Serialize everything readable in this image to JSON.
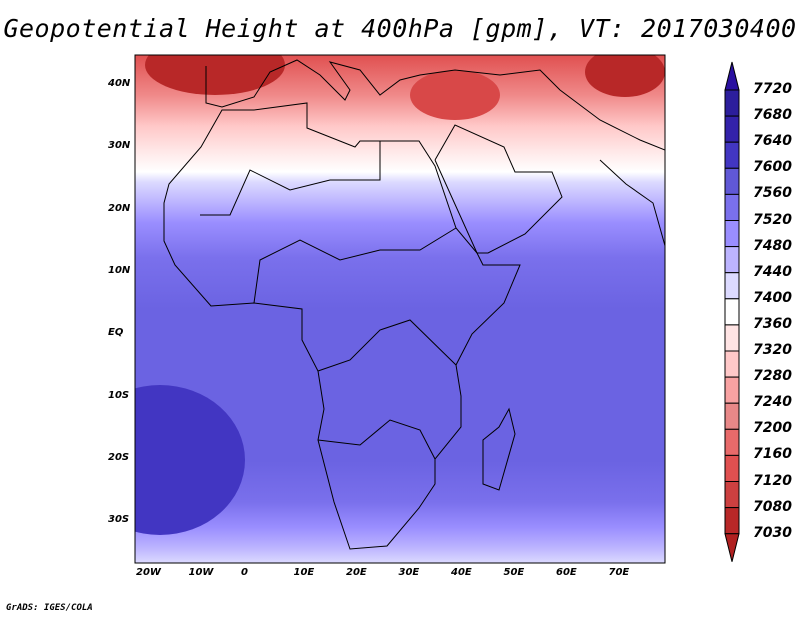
{
  "title": "Geopotential Height at 400hPa [gpm], VT: 2017030400",
  "x_ticks": [
    "20W",
    "10W",
    "0",
    "10E",
    "20E",
    "30E",
    "40E",
    "50E",
    "60E",
    "70E"
  ],
  "y_ticks": [
    "40N",
    "30N",
    "20N",
    "10N",
    "EQ",
    "10S",
    "20S",
    "30S"
  ],
  "colorbar": {
    "labels": [
      "7720",
      "7680",
      "7640",
      "7600",
      "7560",
      "7520",
      "7480",
      "7440",
      "7400",
      "7360",
      "7320",
      "7280",
      "7240",
      "7200",
      "7160",
      "7120",
      "7080",
      "7030"
    ],
    "colors": [
      "#2a10a0",
      "#2c1e9c",
      "#3322aa",
      "#4236c2",
      "#6058d6",
      "#7a70ec",
      "#9a8eff",
      "#bcb4ff",
      "#dcdaff",
      "#ffffff",
      "#ffe4e4",
      "#ffc8c8",
      "#f8a2a2",
      "#e88888",
      "#e86a6a",
      "#e05050",
      "#cc4040",
      "#b82828",
      "#b02020"
    ]
  },
  "credit": "GrADS: IGES/COLA"
}
